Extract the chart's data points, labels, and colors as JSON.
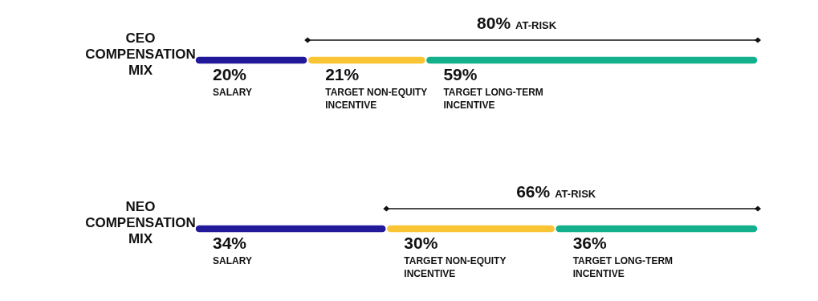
{
  "chart_data": {
    "type": "bar",
    "orientation": "horizontal",
    "stacked": true,
    "categories": [
      "CEO COMPENSATION MIX",
      "NEO COMPENSATION MIX"
    ],
    "series": [
      {
        "name": "SALARY",
        "color": "#22189a",
        "values": [
          20,
          34
        ],
        "value_labels": [
          "20%",
          "34%"
        ]
      },
      {
        "name": "TARGET NON-EQUITY INCENTIVE",
        "color": "#f9c535",
        "values": [
          21,
          30
        ],
        "value_labels": [
          "21%",
          "30%"
        ]
      },
      {
        "name": "TARGET LONG-TERM INCENTIVE",
        "color": "#14b08c",
        "values": [
          59,
          36
        ],
        "value_labels": [
          "59%",
          "36%"
        ]
      }
    ],
    "annotations": [
      "80% AT-RISK",
      "66% AT-RISK"
    ]
  }
}
